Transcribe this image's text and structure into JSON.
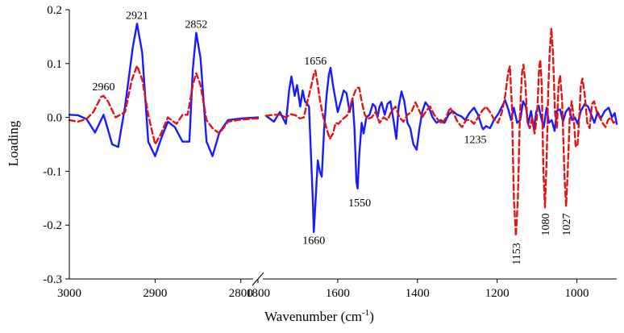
{
  "chart_data": {
    "type": "line",
    "xlabel": "Wavenumber (cm",
    "xlabel_sup": "-1",
    "xlabel_end": ")",
    "ylabel": "Loading",
    "ylim": [
      -0.3,
      0.2
    ],
    "yticks": [
      "-0.3",
      "-0.2",
      "-0.1",
      "0.0",
      "0.1",
      "0.2"
    ],
    "axis_break": {
      "left_segment": [
        3000,
        2780
      ],
      "right_segment": [
        1800,
        900
      ]
    },
    "xticks": [
      {
        "value": 3000,
        "label": "3000"
      },
      {
        "value": 2900,
        "label": "2900"
      },
      {
        "value": 2800,
        "label": "2800"
      },
      {
        "value": 1800,
        "label": "1800"
      },
      {
        "value": 1600,
        "label": "1600"
      },
      {
        "value": 1400,
        "label": "1400"
      },
      {
        "value": 1200,
        "label": "1200"
      },
      {
        "value": 1000,
        "label": "1000"
      }
    ],
    "grid": false,
    "legend": "none",
    "series": [
      {
        "color": "#1a1aff",
        "style": "solid",
        "points": [
          [
            3000,
            0.005
          ],
          [
            2990,
            0.004
          ],
          [
            2980,
            -0.003
          ],
          [
            2970,
            -0.028
          ],
          [
            2960,
            0.005
          ],
          [
            2950,
            -0.05
          ],
          [
            2943,
            -0.055
          ],
          [
            2935,
            0.02
          ],
          [
            2926,
            0.13
          ],
          [
            2921,
            0.174
          ],
          [
            2915,
            0.12
          ],
          [
            2908,
            -0.045
          ],
          [
            2900,
            -0.072
          ],
          [
            2892,
            -0.035
          ],
          [
            2885,
            -0.008
          ],
          [
            2877,
            -0.018
          ],
          [
            2868,
            -0.045
          ],
          [
            2860,
            -0.045
          ],
          [
            2856,
            0.09
          ],
          [
            2852,
            0.157
          ],
          [
            2847,
            0.11
          ],
          [
            2840,
            -0.045
          ],
          [
            2833,
            -0.072
          ],
          [
            2825,
            -0.028
          ],
          [
            2815,
            -0.005
          ],
          [
            2800,
            -0.002
          ],
          [
            2780,
            0.0
          ],
          [
            1780,
            0.003
          ],
          [
            1760,
            -0.008
          ],
          [
            1745,
            0.01
          ],
          [
            1730,
            -0.012
          ],
          [
            1722,
            0.05
          ],
          [
            1716,
            0.076
          ],
          [
            1708,
            0.04
          ],
          [
            1702,
            0.06
          ],
          [
            1694,
            0.02
          ],
          [
            1688,
            0.05
          ],
          [
            1682,
            0.03
          ],
          [
            1672,
            0.02
          ],
          [
            1662,
            -0.16
          ],
          [
            1660,
            -0.213
          ],
          [
            1656,
            -0.16
          ],
          [
            1650,
            -0.08
          ],
          [
            1645,
            -0.1
          ],
          [
            1640,
            -0.11
          ],
          [
            1634,
            -0.02
          ],
          [
            1628,
            0.04
          ],
          [
            1622,
            0.08
          ],
          [
            1618,
            0.092
          ],
          [
            1612,
            0.06
          ],
          [
            1600,
            0.01
          ],
          [
            1592,
            0.03
          ],
          [
            1585,
            0.05
          ],
          [
            1578,
            0.045
          ],
          [
            1570,
            0.01
          ],
          [
            1563,
            0.035
          ],
          [
            1558,
            -0.02
          ],
          [
            1553,
            -0.12
          ],
          [
            1550,
            -0.132
          ],
          [
            1546,
            -0.07
          ],
          [
            1540,
            -0.01
          ],
          [
            1535,
            -0.03
          ],
          [
            1528,
            0.0
          ],
          [
            1520,
            0.005
          ],
          [
            1512,
            0.025
          ],
          [
            1506,
            0.02
          ],
          [
            1500,
            0.0
          ],
          [
            1495,
            0.02
          ],
          [
            1490,
            0.028
          ],
          [
            1482,
            0.005
          ],
          [
            1475,
            0.025
          ],
          [
            1468,
            0.03
          ],
          [
            1460,
            -0.005
          ],
          [
            1453,
            -0.04
          ],
          [
            1447,
            0.02
          ],
          [
            1440,
            0.048
          ],
          [
            1433,
            0.03
          ],
          [
            1425,
            -0.01
          ],
          [
            1418,
            -0.02
          ],
          [
            1410,
            -0.05
          ],
          [
            1402,
            -0.06
          ],
          [
            1395,
            -0.02
          ],
          [
            1388,
            0.01
          ],
          [
            1380,
            0.028
          ],
          [
            1372,
            0.02
          ],
          [
            1362,
            0.0
          ],
          [
            1352,
            -0.01
          ],
          [
            1342,
            -0.005
          ],
          [
            1332,
            -0.01
          ],
          [
            1322,
            0.005
          ],
          [
            1312,
            0.012
          ],
          [
            1300,
            0.005
          ],
          [
            1290,
            0.002
          ],
          [
            1280,
            -0.005
          ],
          [
            1270,
            0.008
          ],
          [
            1258,
            0.018
          ],
          [
            1248,
            0.005
          ],
          [
            1238,
            -0.018
          ],
          [
            1235,
            -0.022
          ],
          [
            1228,
            -0.016
          ],
          [
            1218,
            -0.02
          ],
          [
            1208,
            -0.005
          ],
          [
            1196,
            0.008
          ],
          [
            1188,
            0.02
          ],
          [
            1180,
            0.032
          ],
          [
            1172,
            0.015
          ],
          [
            1165,
            -0.005
          ],
          [
            1158,
            0.018
          ],
          [
            1150,
            -0.01
          ],
          [
            1142,
            -0.005
          ],
          [
            1135,
            0.03
          ],
          [
            1128,
            0.02
          ],
          [
            1122,
            -0.012
          ],
          [
            1115,
            0.012
          ],
          [
            1108,
            -0.022
          ],
          [
            1102,
            0.01
          ],
          [
            1096,
            0.022
          ],
          [
            1090,
            0.0
          ],
          [
            1083,
            -0.018
          ],
          [
            1076,
            0.018
          ],
          [
            1070,
            -0.01
          ],
          [
            1063,
            -0.005
          ],
          [
            1056,
            -0.025
          ],
          [
            1050,
            0.012
          ],
          [
            1042,
            0.015
          ],
          [
            1035,
            -0.008
          ],
          [
            1028,
            0.01
          ],
          [
            1020,
            0.018
          ],
          [
            1012,
            -0.005
          ],
          [
            1005,
            0.0
          ],
          [
            998,
            -0.012
          ],
          [
            990,
            0.012
          ],
          [
            980,
            0.025
          ],
          [
            972,
            0.02
          ],
          [
            964,
            0.005
          ],
          [
            956,
            -0.01
          ],
          [
            948,
            0.01
          ],
          [
            940,
            -0.002
          ],
          [
            930,
            0.012
          ],
          [
            920,
            0.018
          ],
          [
            912,
            0.0
          ],
          [
            905,
            0.008
          ],
          [
            900,
            -0.012
          ]
        ]
      },
      {
        "color": "#e01414",
        "style": "dashed",
        "points": [
          [
            3000,
            -0.005
          ],
          [
            2990,
            -0.008
          ],
          [
            2980,
            -0.003
          ],
          [
            2972,
            0.01
          ],
          [
            2963,
            0.038
          ],
          [
            2960,
            0.04
          ],
          [
            2955,
            0.03
          ],
          [
            2946,
            0.0
          ],
          [
            2935,
            0.01
          ],
          [
            2927,
            0.07
          ],
          [
            2921,
            0.096
          ],
          [
            2915,
            0.07
          ],
          [
            2908,
            0.005
          ],
          [
            2900,
            -0.05
          ],
          [
            2893,
            -0.03
          ],
          [
            2885,
            0.0
          ],
          [
            2875,
            -0.012
          ],
          [
            2868,
            0.005
          ],
          [
            2862,
            0.005
          ],
          [
            2856,
            0.06
          ],
          [
            2852,
            0.082
          ],
          [
            2847,
            0.06
          ],
          [
            2840,
            -0.005
          ],
          [
            2833,
            -0.02
          ],
          [
            2825,
            -0.03
          ],
          [
            2815,
            -0.008
          ],
          [
            2800,
            -0.004
          ],
          [
            2780,
            -0.002
          ],
          [
            1780,
            0.003
          ],
          [
            1760,
            0.005
          ],
          [
            1745,
            0.005
          ],
          [
            1730,
            0.0
          ],
          [
            1718,
            0.006
          ],
          [
            1706,
            0.004
          ],
          [
            1695,
            -0.002
          ],
          [
            1685,
            0.0
          ],
          [
            1676,
            0.03
          ],
          [
            1666,
            0.06
          ],
          [
            1660,
            0.08
          ],
          [
            1656,
            0.087
          ],
          [
            1650,
            0.06
          ],
          [
            1644,
            0.03
          ],
          [
            1636,
            0.0
          ],
          [
            1628,
            -0.02
          ],
          [
            1620,
            -0.04
          ],
          [
            1612,
            -0.03
          ],
          [
            1605,
            -0.01
          ],
          [
            1598,
            -0.012
          ],
          [
            1590,
            -0.005
          ],
          [
            1582,
            0.0
          ],
          [
            1575,
            0.005
          ],
          [
            1566,
            0.028
          ],
          [
            1558,
            0.045
          ],
          [
            1552,
            0.055
          ],
          [
            1546,
            0.055
          ],
          [
            1540,
            0.03
          ],
          [
            1532,
            0.005
          ],
          [
            1525,
            -0.003
          ],
          [
            1515,
            0.0
          ],
          [
            1505,
            0.01
          ],
          [
            1495,
            -0.01
          ],
          [
            1485,
            0.0
          ],
          [
            1475,
            -0.005
          ],
          [
            1465,
            0.012
          ],
          [
            1455,
            0.02
          ],
          [
            1445,
            0.0
          ],
          [
            1435,
            -0.008
          ],
          [
            1425,
            0.005
          ],
          [
            1415,
            0.01
          ],
          [
            1405,
            0.028
          ],
          [
            1397,
            0.015
          ],
          [
            1388,
            0.0
          ],
          [
            1378,
            0.012
          ],
          [
            1368,
            0.02
          ],
          [
            1358,
            0.005
          ],
          [
            1348,
            -0.005
          ],
          [
            1338,
            -0.012
          ],
          [
            1328,
            0.0
          ],
          [
            1318,
            0.018
          ],
          [
            1308,
            0.005
          ],
          [
            1298,
            -0.01
          ],
          [
            1288,
            -0.018
          ],
          [
            1278,
            -0.005
          ],
          [
            1268,
            -0.005
          ],
          [
            1258,
            -0.012
          ],
          [
            1248,
            0.0
          ],
          [
            1238,
            0.012
          ],
          [
            1228,
            0.02
          ],
          [
            1218,
            0.01
          ],
          [
            1208,
            -0.003
          ],
          [
            1198,
            -0.01
          ],
          [
            1188,
            0.01
          ],
          [
            1180,
            0.04
          ],
          [
            1172,
            0.085
          ],
          [
            1168,
            0.095
          ],
          [
            1163,
            0.02
          ],
          [
            1158,
            -0.15
          ],
          [
            1153,
            -0.22
          ],
          [
            1148,
            -0.15
          ],
          [
            1143,
            0.0
          ],
          [
            1138,
            0.08
          ],
          [
            1134,
            0.098
          ],
          [
            1129,
            0.06
          ],
          [
            1124,
            -0.01
          ],
          [
            1118,
            -0.02
          ],
          [
            1112,
            0.0
          ],
          [
            1106,
            -0.03
          ],
          [
            1100,
            0.0
          ],
          [
            1095,
            0.09
          ],
          [
            1092,
            0.107
          ],
          [
            1088,
            0.06
          ],
          [
            1084,
            -0.1
          ],
          [
            1080,
            -0.167
          ],
          [
            1076,
            -0.08
          ],
          [
            1072,
            0.05
          ],
          [
            1068,
            0.125
          ],
          [
            1064,
            0.165
          ],
          [
            1060,
            0.12
          ],
          [
            1055,
            0.01
          ],
          [
            1050,
            -0.02
          ],
          [
            1046,
            0.06
          ],
          [
            1042,
            0.078
          ],
          [
            1037,
            0.03
          ],
          [
            1031,
            -0.11
          ],
          [
            1027,
            -0.165
          ],
          [
            1023,
            -0.1
          ],
          [
            1018,
            0.0
          ],
          [
            1013,
            0.03
          ],
          [
            1008,
            0.0
          ],
          [
            1003,
            -0.055
          ],
          [
            998,
            -0.05
          ],
          [
            994,
            0.0
          ],
          [
            990,
            0.06
          ],
          [
            986,
            0.072
          ],
          [
            980,
            0.04
          ],
          [
            974,
            -0.01
          ],
          [
            968,
            -0.02
          ],
          [
            962,
            0.025
          ],
          [
            957,
            0.03
          ],
          [
            950,
            0.01
          ],
          [
            943,
            0.0
          ],
          [
            936,
            -0.01
          ],
          [
            928,
            -0.018
          ],
          [
            922,
            -0.005
          ],
          [
            915,
            0.0
          ],
          [
            908,
            -0.01
          ],
          [
            900,
            -0.005
          ]
        ]
      }
    ],
    "annotations": [
      {
        "text": "2960",
        "x": 2960,
        "y": 0.05,
        "rotate": 0
      },
      {
        "text": "2921",
        "x": 2921,
        "y": 0.183,
        "rotate": 0
      },
      {
        "text": "2852",
        "x": 2852,
        "y": 0.166,
        "rotate": 0
      },
      {
        "text": "1656",
        "x": 1656,
        "y": 0.098,
        "rotate": 0
      },
      {
        "text": "1550",
        "x": 1545,
        "y": -0.165,
        "rotate": 0
      },
      {
        "text": "1660",
        "x": 1660,
        "y": -0.235,
        "rotate": 0
      },
      {
        "text": "1235",
        "x": 1255,
        "y": -0.048,
        "rotate": 0
      },
      {
        "text": "1153",
        "x": 1153,
        "y": -0.233,
        "rotate": -90
      },
      {
        "text": "1080",
        "x": 1080,
        "y": -0.178,
        "rotate": -90
      },
      {
        "text": "1027",
        "x": 1027,
        "y": -0.178,
        "rotate": -90
      }
    ]
  }
}
